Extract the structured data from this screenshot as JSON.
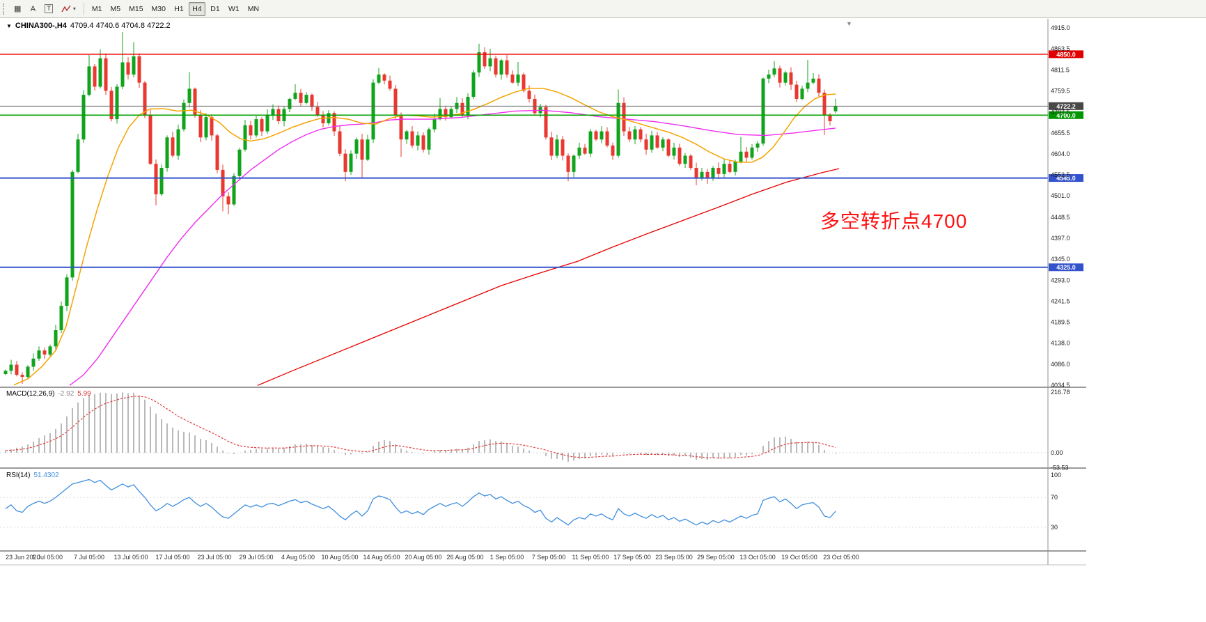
{
  "toolbar": {
    "tools": [
      {
        "id": "chart-grid",
        "glyph": "▦"
      },
      {
        "id": "cursor-a",
        "glyph": "A"
      },
      {
        "id": "text-box",
        "glyph": "T",
        "boxed": true
      },
      {
        "id": "indicators-zigzag",
        "glyph": "zigzag",
        "caret": "▾"
      }
    ],
    "timeframes": [
      "M1",
      "M5",
      "M15",
      "M30",
      "H1",
      "H4",
      "D1",
      "W1",
      "MN"
    ],
    "active_timeframe": "H4"
  },
  "chart": {
    "symbol_line": {
      "collapse": "▼",
      "symbol": "CHINA300-,H4",
      "ohlc": "4709.4 4740.6 4704.8 4722.2"
    },
    "scroll_marker": "▼"
  },
  "chart_data": {
    "type": "candlestick",
    "symbol": "CHINA300-,H4",
    "last_ohlc": {
      "open": 4709.4,
      "high": 4740.6,
      "low": 4704.8,
      "close": 4722.2
    },
    "annotation": {
      "text": "多空转折点4700",
      "color": "#fe1010"
    },
    "price_axis": {
      "max": 4915.0,
      "min": 4034.5,
      "ticks": [
        4915.0,
        4863.5,
        4811.5,
        4759.5,
        4707.5,
        4655.5,
        4604.0,
        4552.5,
        4501.0,
        4448.5,
        4397.0,
        4345.0,
        4293.0,
        4241.5,
        4189.5,
        4138.0,
        4086.0,
        4034.5
      ]
    },
    "x_labels": [
      "23 Jun 2020",
      "1 Jul 05:00",
      "7 Jul 05:00",
      "13 Jul 05:00",
      "17 Jul 05:00",
      "23 Jul 05:00",
      "29 Jul 05:00",
      "4 Aug 05:00",
      "10 Aug 05:00",
      "14 Aug 05:00",
      "20 Aug 05:00",
      "26 Aug 05:00",
      "1 Sep 05:00",
      "7 Sep 05:00",
      "11 Sep 05:00",
      "17 Sep 05:00",
      "23 Sep 05:00",
      "29 Sep 05:00",
      "13 Oct 05:00",
      "19 Oct 05:00",
      "23 Oct 05:00"
    ],
    "hlines": [
      {
        "price": 4850.0,
        "label": "4850.0",
        "color": "#ee0000",
        "tag_bg": "#e00000",
        "width": 1.4
      },
      {
        "price": 4722.2,
        "label": "4722.2",
        "color": "#606060",
        "tag_bg": "#484848",
        "width": 1
      },
      {
        "price": 4700.0,
        "label": "4700.0",
        "color": "#00a000",
        "tag_bg": "#009600",
        "width": 1.6
      },
      {
        "price": 4545.0,
        "label": "4545.0",
        "color": "#3353cc",
        "tag_bg": "#3353cc",
        "width": 2
      },
      {
        "price": 4325.0,
        "label": "4325.0",
        "color": "#3353cc",
        "tag_bg": "#3353cc",
        "width": 2
      }
    ],
    "closes": [
      4070,
      4085,
      4060,
      4055,
      4080,
      4100,
      4120,
      4110,
      4130,
      4170,
      4230,
      4300,
      4560,
      4640,
      4750,
      4820,
      4770,
      4840,
      4760,
      4690,
      4770,
      4830,
      4800,
      4845,
      4780,
      4700,
      4580,
      4505,
      4570,
      4645,
      4600,
      4665,
      4730,
      4765,
      4700,
      4645,
      4695,
      4650,
      4565,
      4500,
      4480,
      4550,
      4615,
      4675,
      4650,
      4690,
      4660,
      4700,
      4715,
      4685,
      4715,
      4740,
      4755,
      4730,
      4750,
      4720,
      4700,
      4680,
      4705,
      4660,
      4605,
      4560,
      4605,
      4640,
      4590,
      4640,
      4780,
      4800,
      4785,
      4765,
      4700,
      4640,
      4660,
      4625,
      4650,
      4615,
      4665,
      4690,
      4715,
      4695,
      4715,
      4730,
      4700,
      4745,
      4805,
      4855,
      4820,
      4840,
      4800,
      4835,
      4800,
      4780,
      4800,
      4760,
      4740,
      4705,
      4720,
      4645,
      4600,
      4640,
      4600,
      4560,
      4600,
      4620,
      4605,
      4660,
      4640,
      4660,
      4625,
      4600,
      4730,
      4660,
      4640,
      4665,
      4640,
      4615,
      4650,
      4620,
      4640,
      4600,
      4620,
      4580,
      4600,
      4570,
      4545,
      4560,
      4545,
      4570,
      4555,
      4580,
      4560,
      4585,
      4610,
      4595,
      4620,
      4630,
      4790,
      4800,
      4815,
      4780,
      4805,
      4775,
      4740,
      4765,
      4780,
      4790,
      4755,
      4700,
      4685,
      4722.2
    ],
    "open_first": 4062,
    "wick_high": {
      "15": 4848,
      "17": 4862,
      "21": 4905,
      "23": 4880,
      "33": 4806,
      "52": 4776,
      "67": 4816,
      "78": 4742,
      "85": 4876,
      "87": 4863,
      "92": 4831,
      "110": 4763,
      "132": 4646,
      "138": 4833,
      "144": 4836
    },
    "wick_low": {
      "3": 4038,
      "27": 4478,
      "39": 4463,
      "40": 4456,
      "61": 4537,
      "64": 4546,
      "71": 4597,
      "101": 4537,
      "124": 4527,
      "126": 4530,
      "147": 4651
    },
    "ma_orange": [
      [
        20,
        4035
      ],
      [
        40,
        4050
      ],
      [
        60,
        4080
      ],
      [
        80,
        4120
      ],
      [
        95,
        4180
      ],
      [
        110,
        4280
      ],
      [
        125,
        4380
      ],
      [
        140,
        4470
      ],
      [
        155,
        4550
      ],
      [
        170,
        4620
      ],
      [
        185,
        4670
      ],
      [
        200,
        4700
      ],
      [
        215,
        4715
      ],
      [
        235,
        4716
      ],
      [
        255,
        4710
      ],
      [
        275,
        4712
      ],
      [
        295,
        4702
      ],
      [
        315,
        4682
      ],
      [
        330,
        4658
      ],
      [
        345,
        4642
      ],
      [
        360,
        4636
      ],
      [
        380,
        4642
      ],
      [
        400,
        4655
      ],
      [
        420,
        4670
      ],
      [
        440,
        4682
      ],
      [
        460,
        4692
      ],
      [
        480,
        4694
      ],
      [
        500,
        4690
      ],
      [
        520,
        4680
      ],
      [
        540,
        4678
      ],
      [
        560,
        4692
      ],
      [
        580,
        4700
      ],
      [
        600,
        4698
      ],
      [
        620,
        4695
      ],
      [
        640,
        4697
      ],
      [
        660,
        4703
      ],
      [
        680,
        4714
      ],
      [
        700,
        4728
      ],
      [
        720,
        4744
      ],
      [
        740,
        4757
      ],
      [
        760,
        4766
      ],
      [
        780,
        4766
      ],
      [
        800,
        4757
      ],
      [
        820,
        4743
      ],
      [
        840,
        4725
      ],
      [
        860,
        4708
      ],
      [
        880,
        4696
      ],
      [
        900,
        4688
      ],
      [
        920,
        4678
      ],
      [
        940,
        4668
      ],
      [
        960,
        4658
      ],
      [
        980,
        4645
      ],
      [
        1000,
        4628
      ],
      [
        1020,
        4608
      ],
      [
        1040,
        4592
      ],
      [
        1060,
        4584
      ],
      [
        1080,
        4584
      ],
      [
        1095,
        4596
      ],
      [
        1110,
        4620
      ],
      [
        1125,
        4655
      ],
      [
        1140,
        4692
      ],
      [
        1155,
        4720
      ],
      [
        1170,
        4740
      ],
      [
        1185,
        4750
      ],
      [
        1200,
        4752
      ]
    ],
    "ma_magenta": [
      [
        100,
        4034
      ],
      [
        120,
        4060
      ],
      [
        140,
        4100
      ],
      [
        160,
        4150
      ],
      [
        180,
        4200
      ],
      [
        200,
        4250
      ],
      [
        220,
        4300
      ],
      [
        240,
        4350
      ],
      [
        260,
        4395
      ],
      [
        280,
        4435
      ],
      [
        300,
        4470
      ],
      [
        320,
        4505
      ],
      [
        340,
        4535
      ],
      [
        360,
        4565
      ],
      [
        380,
        4590
      ],
      [
        400,
        4615
      ],
      [
        420,
        4635
      ],
      [
        440,
        4652
      ],
      [
        460,
        4665
      ],
      [
        480,
        4672
      ],
      [
        500,
        4676
      ],
      [
        520,
        4678
      ],
      [
        540,
        4682
      ],
      [
        560,
        4688
      ],
      [
        580,
        4690
      ],
      [
        620,
        4690
      ],
      [
        660,
        4694
      ],
      [
        700,
        4702
      ],
      [
        740,
        4710
      ],
      [
        780,
        4712
      ],
      [
        820,
        4706
      ],
      [
        860,
        4696
      ],
      [
        900,
        4690
      ],
      [
        940,
        4684
      ],
      [
        980,
        4674
      ],
      [
        1020,
        4662
      ],
      [
        1060,
        4652
      ],
      [
        1100,
        4650
      ],
      [
        1140,
        4656
      ],
      [
        1180,
        4664
      ],
      [
        1200,
        4668
      ]
    ],
    "ma_red": [
      [
        370,
        4034
      ],
      [
        420,
        4070
      ],
      [
        470,
        4105
      ],
      [
        520,
        4140
      ],
      [
        570,
        4175
      ],
      [
        620,
        4210
      ],
      [
        670,
        4245
      ],
      [
        720,
        4280
      ],
      [
        770,
        4308
      ],
      [
        830,
        4340
      ],
      [
        880,
        4375
      ],
      [
        930,
        4408
      ],
      [
        980,
        4440
      ],
      [
        1030,
        4472
      ],
      [
        1080,
        4505
      ],
      [
        1130,
        4535
      ],
      [
        1180,
        4558
      ],
      [
        1205,
        4568
      ]
    ],
    "macd": {
      "label": "MACD(12,26,9)",
      "value": "-2.92",
      "signal_value": "5.99",
      "axis": [
        216.78,
        0,
        -53.53
      ],
      "values": [
        8,
        12,
        18,
        22,
        30,
        40,
        52,
        62,
        70,
        85,
        105,
        130,
        160,
        180,
        195,
        205,
        210,
        215,
        214,
        210,
        212,
        216,
        213,
        215,
        205,
        190,
        165,
        140,
        120,
        105,
        90,
        80,
        75,
        72,
        62,
        50,
        45,
        35,
        22,
        8,
        -2,
        -5,
        0,
        8,
        10,
        14,
        12,
        16,
        18,
        15,
        18,
        24,
        30,
        30,
        32,
        28,
        24,
        20,
        18,
        10,
        0,
        -8,
        -6,
        0,
        -4,
        2,
        25,
        40,
        45,
        42,
        30,
        15,
        8,
        2,
        0,
        -3,
        0,
        5,
        10,
        10,
        12,
        14,
        12,
        18,
        30,
        42,
        45,
        48,
        42,
        40,
        32,
        25,
        22,
        15,
        8,
        0,
        0,
        -12,
        -22,
        -22,
        -26,
        -32,
        -28,
        -22,
        -20,
        -12,
        -10,
        -6,
        -8,
        -12,
        0,
        -2,
        -4,
        0,
        -4,
        -8,
        -5,
        -8,
        -5,
        -12,
        -10,
        -15,
        -12,
        -18,
        -25,
        -22,
        -25,
        -20,
        -22,
        -18,
        -20,
        -15,
        -8,
        -10,
        -5,
        0,
        25,
        42,
        55,
        55,
        58,
        50,
        40,
        38,
        40,
        38,
        28,
        10,
        0,
        -2.92
      ]
    },
    "rsi": {
      "label": "RSI(14)",
      "value": "51.4302",
      "axis": [
        100,
        70,
        30
      ],
      "values": [
        55,
        60,
        52,
        50,
        58,
        62,
        65,
        62,
        65,
        70,
        76,
        82,
        88,
        90,
        92,
        94,
        90,
        93,
        86,
        80,
        84,
        88,
        84,
        87,
        78,
        70,
        60,
        52,
        56,
        62,
        58,
        62,
        67,
        70,
        63,
        58,
        62,
        57,
        50,
        44,
        42,
        48,
        54,
        60,
        57,
        60,
        57,
        61,
        62,
        59,
        62,
        65,
        67,
        63,
        65,
        61,
        58,
        55,
        58,
        52,
        45,
        40,
        47,
        52,
        45,
        52,
        68,
        72,
        70,
        67,
        57,
        49,
        52,
        48,
        51,
        47,
        54,
        58,
        62,
        58,
        61,
        63,
        58,
        64,
        71,
        76,
        72,
        74,
        68,
        71,
        66,
        62,
        65,
        59,
        56,
        50,
        53,
        42,
        37,
        43,
        38,
        33,
        40,
        43,
        41,
        48,
        45,
        48,
        43,
        40,
        55,
        48,
        45,
        49,
        45,
        42,
        47,
        43,
        46,
        40,
        43,
        38,
        41,
        37,
        33,
        37,
        34,
        39,
        36,
        40,
        37,
        41,
        45,
        42,
        46,
        48,
        66,
        69,
        71,
        64,
        68,
        62,
        55,
        60,
        62,
        63,
        57,
        45,
        43,
        51.43
      ]
    },
    "colors": {
      "up": "#10a31c",
      "down": "#e8382f",
      "ma_orange": "#f5a300",
      "ma_magenta": "#ee2dee",
      "ma_red": "#e60000",
      "macd_hist": "#b9b9b9",
      "macd_signal": "#e04040",
      "rsi_line": "#3f8ede"
    }
  }
}
